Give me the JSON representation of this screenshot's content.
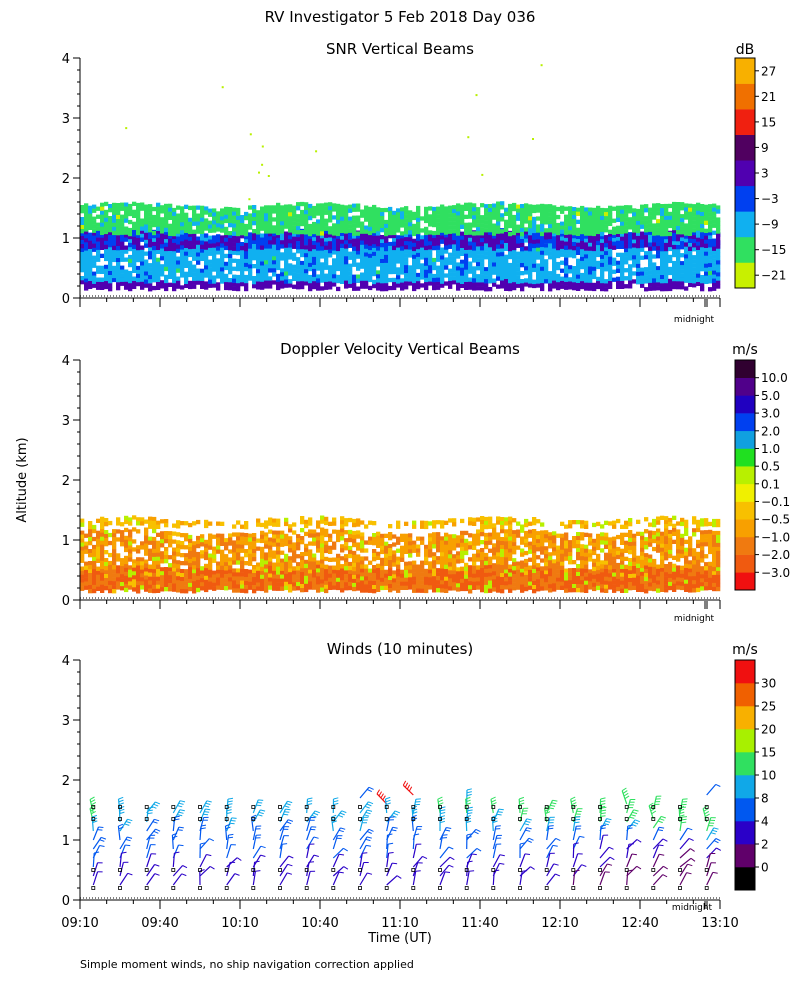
{
  "title": "RV Investigator   5 Feb 2018 Day 036",
  "footnote": "Simple moment winds, no ship navigation correction applied",
  "ylabel": "Altitude (km)",
  "xlabel": "Time (UT)",
  "midnight_label": "midnight",
  "chart_data": [
    {
      "type": "heatmap",
      "title": "SNR Vertical Beams",
      "unit": "dB",
      "ylim": [
        0,
        4
      ],
      "yticks": [
        0,
        1,
        2,
        3,
        4
      ],
      "xlim_minutes": [
        0,
        240
      ],
      "colorbar": {
        "labels": [
          "27",
          "21",
          "15",
          "9",
          "3",
          "−3",
          "−9",
          "−15",
          "−21"
        ],
        "colors": [
          "#c8f000",
          "#30e060",
          "#10b0f0",
          "#0040f0",
          "#5000b0",
          "#500060",
          "#f02010",
          "#f07000",
          "#f8b000"
        ]
      },
      "layers": [
        {
          "name": "near-surface strong echo",
          "alt_km": [
            0.18,
            0.3
          ],
          "value_db": -3
        },
        {
          "name": "boundary layer",
          "alt_km": [
            0.3,
            1.1
          ],
          "value_db": -12
        },
        {
          "name": "inversion layer",
          "alt_km": [
            0.85,
            1.1
          ],
          "value_db": -3
        },
        {
          "name": "upper weak layer",
          "alt_km": [
            1.1,
            1.55
          ],
          "value_db": -18
        }
      ]
    },
    {
      "type": "heatmap",
      "title": "Doppler Velocity Vertical Beams",
      "unit": "m/s",
      "ylim": [
        0,
        4
      ],
      "yticks": [
        0,
        1,
        2,
        3,
        4
      ],
      "xlim_minutes": [
        0,
        240
      ],
      "colorbar": {
        "labels": [
          "10.0",
          "5.0",
          "3.0",
          "2.0",
          "1.0",
          "0.5",
          "0.1",
          "−0.1",
          "−0.5",
          "−1.0",
          "−2.0",
          "−3.0"
        ],
        "colors": [
          "#f01010",
          "#f05a10",
          "#f07a10",
          "#f8a000",
          "#f8c000",
          "#f0f000",
          "#b8f000",
          "#20e020",
          "#10a0e0",
          "#0040f0",
          "#2000c0",
          "#50008a",
          "#300030"
        ]
      },
      "layers": [
        {
          "name": "lower layer",
          "alt_km": [
            0.18,
            0.55
          ],
          "value_ms": -2.0
        },
        {
          "name": "mid layer",
          "alt_km": [
            0.55,
            1.15
          ],
          "value_ms": -1.0
        },
        {
          "name": "upper strip",
          "alt_km": [
            1.25,
            1.35
          ],
          "value_ms": -0.5
        }
      ]
    },
    {
      "type": "wind-barbs",
      "title": "Winds (10 minutes)",
      "unit": "m/s",
      "ylim": [
        0,
        4
      ],
      "yticks": [
        0,
        1,
        2,
        3,
        4
      ],
      "xticks": [
        "09:10",
        "09:40",
        "10:10",
        "10:40",
        "11:10",
        "11:40",
        "12:10",
        "12:40",
        "13:10"
      ],
      "xlim_minutes": [
        0,
        240
      ],
      "profile_interval_minutes": 10,
      "colorbar": {
        "labels": [
          "30",
          "25",
          "20",
          "15",
          "10",
          "8",
          "4",
          "2",
          "0"
        ],
        "colors": [
          "#000000",
          "#60006a",
          "#2a00c8",
          "#0058f0",
          "#10a8e8",
          "#30e060",
          "#a8f000",
          "#f8b000",
          "#f06000",
          "#f01010"
        ]
      },
      "profiles": [
        {
          "t": 5,
          "altitudes_km": [
            1.45,
            1.3,
            1.15,
            1.0,
            0.85,
            0.7,
            0.55,
            0.4,
            0.25
          ],
          "speeds_ms": [
            10,
            10,
            8,
            6,
            5,
            4,
            4,
            3,
            3
          ]
        },
        {
          "t": 15,
          "altitudes_km": [
            1.45,
            1.3,
            1.15,
            1.0,
            0.85,
            0.7,
            0.55,
            0.4,
            0.25
          ],
          "speeds_ms": [
            9,
            9,
            8,
            6,
            5,
            4,
            3,
            3,
            3
          ]
        },
        {
          "t": 25,
          "altitudes_km": [
            1.45,
            1.3,
            1.15,
            1.0,
            0.85,
            0.7,
            0.55,
            0.4,
            0.25
          ],
          "speeds_ms": [
            8,
            9,
            7,
            6,
            5,
            4,
            3,
            3,
            3
          ]
        },
        {
          "t": 35,
          "altitudes_km": [
            1.45,
            1.3,
            1.15,
            1.0,
            0.85,
            0.7,
            0.55,
            0.4,
            0.25
          ],
          "speeds_ms": [
            8,
            8,
            7,
            5,
            5,
            4,
            3,
            3,
            3
          ]
        },
        {
          "t": 45,
          "altitudes_km": [
            1.45,
            1.3,
            1.15,
            1.0,
            0.85,
            0.7,
            0.55,
            0.4,
            0.25
          ],
          "speeds_ms": [
            9,
            8,
            7,
            5,
            4,
            4,
            3,
            3,
            3
          ]
        },
        {
          "t": 55,
          "altitudes_km": [
            1.45,
            1.3,
            1.15,
            1.0,
            0.85,
            0.7,
            0.55,
            0.4,
            0.25
          ],
          "speeds_ms": [
            9,
            9,
            8,
            6,
            5,
            4,
            3,
            3,
            3
          ]
        },
        {
          "t": 65,
          "altitudes_km": [
            1.45,
            1.3,
            1.15,
            1.0,
            0.85,
            0.7,
            0.55,
            0.4,
            0.25
          ],
          "speeds_ms": [
            8,
            9,
            7,
            6,
            5,
            4,
            3,
            3,
            3
          ]
        },
        {
          "t": 75,
          "altitudes_km": [
            1.45,
            1.3,
            1.15,
            1.0,
            0.85,
            0.7,
            0.55,
            0.4,
            0.25
          ],
          "speeds_ms": [
            8,
            8,
            7,
            5,
            4,
            4,
            3,
            3,
            3
          ]
        },
        {
          "t": 85,
          "altitudes_km": [
            1.45,
            1.3,
            1.15,
            1.0,
            0.85,
            0.7,
            0.55,
            0.4,
            0.25
          ],
          "speeds_ms": [
            9,
            8,
            7,
            5,
            4,
            3,
            3,
            3,
            3
          ]
        },
        {
          "t": 95,
          "altitudes_km": [
            1.45,
            1.3,
            1.15,
            1.0,
            0.85,
            0.7,
            0.55,
            0.4,
            0.25
          ],
          "speeds_ms": [
            9,
            9,
            8,
            6,
            5,
            4,
            3,
            3,
            2
          ]
        },
        {
          "t": 105,
          "altitudes_km": [
            1.7,
            1.45,
            1.3,
            1.15,
            1.0,
            0.85,
            0.7,
            0.55,
            0.4,
            0.25
          ],
          "speeds_ms": [
            6,
            9,
            9,
            8,
            6,
            5,
            4,
            3,
            3,
            2
          ]
        },
        {
          "t": 115,
          "altitudes_km": [
            1.6,
            1.45,
            1.3,
            1.15,
            1.0,
            0.85,
            0.7,
            0.55,
            0.4,
            0.25
          ],
          "speeds_ms": [
            30,
            9,
            8,
            7,
            6,
            4,
            4,
            3,
            3,
            2
          ]
        },
        {
          "t": 125,
          "altitudes_km": [
            1.75,
            1.45,
            1.3,
            1.15,
            1.0,
            0.85,
            0.7,
            0.55,
            0.4,
            0.25
          ],
          "speeds_ms": [
            30,
            8,
            8,
            7,
            5,
            4,
            3,
            3,
            3,
            2
          ]
        },
        {
          "t": 135,
          "altitudes_km": [
            1.45,
            1.3,
            1.15,
            1.0,
            0.85,
            0.7,
            0.55,
            0.4,
            0.25
          ],
          "speeds_ms": [
            10,
            9,
            8,
            6,
            5,
            4,
            3,
            3,
            2
          ]
        },
        {
          "t": 145,
          "altitudes_km": [
            1.6,
            1.45,
            1.3,
            1.15,
            1.0,
            0.85,
            0.7,
            0.55,
            0.4,
            0.25
          ],
          "speeds_ms": [
            9,
            10,
            9,
            8,
            6,
            5,
            4,
            3,
            3,
            2
          ]
        },
        {
          "t": 155,
          "altitudes_km": [
            1.45,
            1.3,
            1.15,
            1.0,
            0.85,
            0.7,
            0.55,
            0.4,
            0.25
          ],
          "speeds_ms": [
            10,
            9,
            8,
            6,
            5,
            4,
            3,
            3,
            2
          ]
        },
        {
          "t": 165,
          "altitudes_km": [
            1.45,
            1.3,
            1.15,
            1.0,
            0.85,
            0.7,
            0.55,
            0.4,
            0.25
          ],
          "speeds_ms": [
            10,
            10,
            9,
            6,
            5,
            4,
            3,
            2,
            2
          ]
        },
        {
          "t": 175,
          "altitudes_km": [
            1.45,
            1.3,
            1.15,
            1.0,
            0.85,
            0.7,
            0.55,
            0.4,
            0.25
          ],
          "speeds_ms": [
            11,
            10,
            9,
            6,
            4,
            4,
            3,
            2,
            2
          ]
        },
        {
          "t": 185,
          "altitudes_km": [
            1.45,
            1.3,
            1.15,
            1.0,
            0.85,
            0.7,
            0.55,
            0.4,
            0.25
          ],
          "speeds_ms": [
            12,
            11,
            9,
            6,
            4,
            3,
            2,
            2,
            1
          ]
        },
        {
          "t": 195,
          "altitudes_km": [
            1.45,
            1.3,
            1.15,
            1.0,
            0.85,
            0.7,
            0.55,
            0.4,
            0.25
          ],
          "speeds_ms": [
            13,
            11,
            9,
            5,
            3,
            2,
            2,
            1,
            1
          ]
        },
        {
          "t": 205,
          "altitudes_km": [
            1.6,
            1.45,
            1.3,
            1.15,
            1.0,
            0.85,
            0.7,
            0.55,
            0.4,
            0.25
          ],
          "speeds_ms": [
            12,
            13,
            11,
            8,
            5,
            3,
            2,
            1,
            1,
            1
          ]
        },
        {
          "t": 215,
          "altitudes_km": [
            1.5,
            1.35,
            1.2,
            1.0,
            0.85,
            0.7,
            0.55,
            0.4,
            0.25
          ],
          "speeds_ms": [
            14,
            12,
            10,
            5,
            3,
            2,
            1,
            1,
            1
          ]
        },
        {
          "t": 225,
          "altitudes_km": [
            1.45,
            1.3,
            1.15,
            1.0,
            0.85,
            0.7,
            0.55,
            0.4,
            0.25
          ],
          "speeds_ms": [
            14,
            13,
            10,
            4,
            2,
            1,
            1,
            1,
            1
          ]
        },
        {
          "t": 235,
          "altitudes_km": [
            1.75,
            1.3,
            1.15,
            1.0,
            0.85,
            0.7,
            0.55,
            0.4,
            0.25
          ],
          "speeds_ms": [
            4,
            14,
            11,
            8,
            5,
            2,
            1,
            1,
            1
          ]
        }
      ]
    }
  ]
}
